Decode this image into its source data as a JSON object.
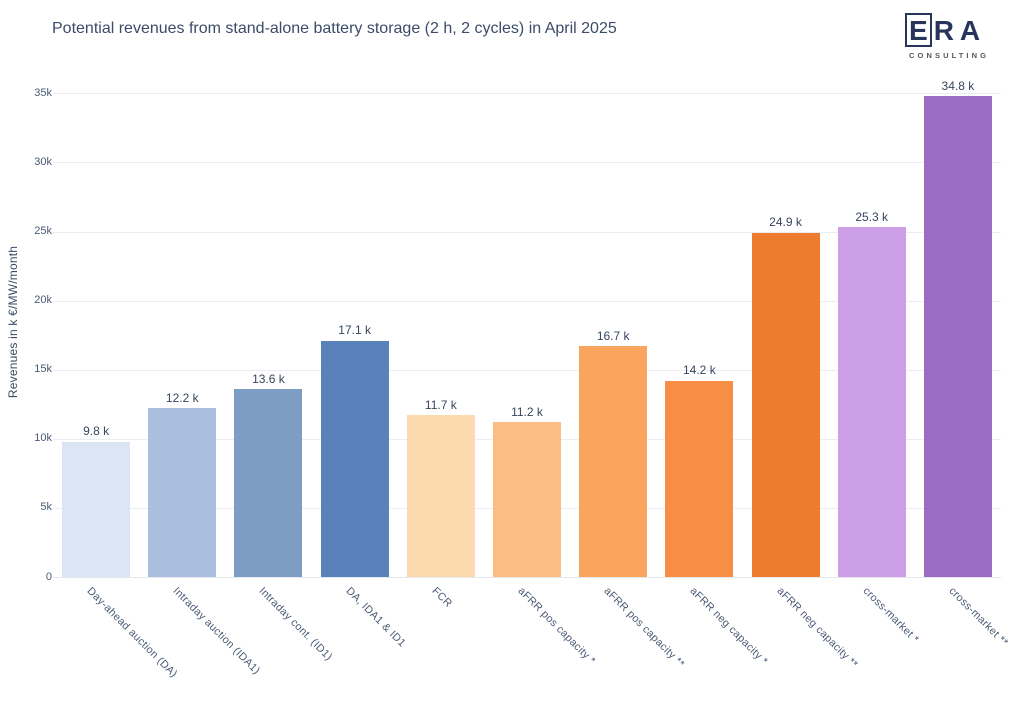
{
  "title": "Potential revenues from stand-alone battery storage (2 h, 2 cycles) in April 2025",
  "logo": {
    "letter_e": "E",
    "letters_ra": "RA",
    "subtitle": "CONSULTING"
  },
  "chart_data": {
    "type": "bar",
    "title": "Potential revenues from stand-alone battery storage (2 h, 2 cycles) in April 2025",
    "xlabel": "",
    "ylabel": "Revenues in k €/MW/month",
    "categories": [
      "Day-ahead auction (DA)",
      "Intraday auction (IDA1)",
      "Intraday cont. (ID1)",
      "DA, IDA1 & ID1",
      "FCR",
      "aFRR pos capacity *",
      "aFRR pos capacity **",
      "aFRR neg capacity *",
      "aFRR neg capacity **",
      "cross-market *",
      "cross-market **"
    ],
    "values": [
      9.8,
      12.2,
      13.6,
      17.1,
      11.7,
      11.2,
      16.7,
      14.2,
      24.9,
      25.3,
      34.8
    ],
    "value_labels": [
      "9.8 k",
      "12.2 k",
      "13.6 k",
      "17.1 k",
      "11.7 k",
      "11.2 k",
      "16.7 k",
      "14.2 k",
      "24.9 k",
      "25.3 k",
      "34.8 k"
    ],
    "bar_colors": [
      "#dbe5f4",
      "#a9bfdd",
      "#7d9dc4",
      "#5a82ba",
      "#fcd9ae",
      "#fbbd83",
      "#f9a55e",
      "#f88e45",
      "#ee7c2e",
      "#cc9fe6",
      "#9b6cc2"
    ],
    "ytick_values": [
      0,
      5,
      10,
      15,
      20,
      25,
      30,
      35
    ],
    "ytick_labels": [
      "0",
      "5k",
      "10k",
      "15k",
      "20k",
      "25k",
      "30k",
      "35k"
    ],
    "ylim": [
      0,
      35000
    ],
    "grid": true,
    "legend": false
  }
}
